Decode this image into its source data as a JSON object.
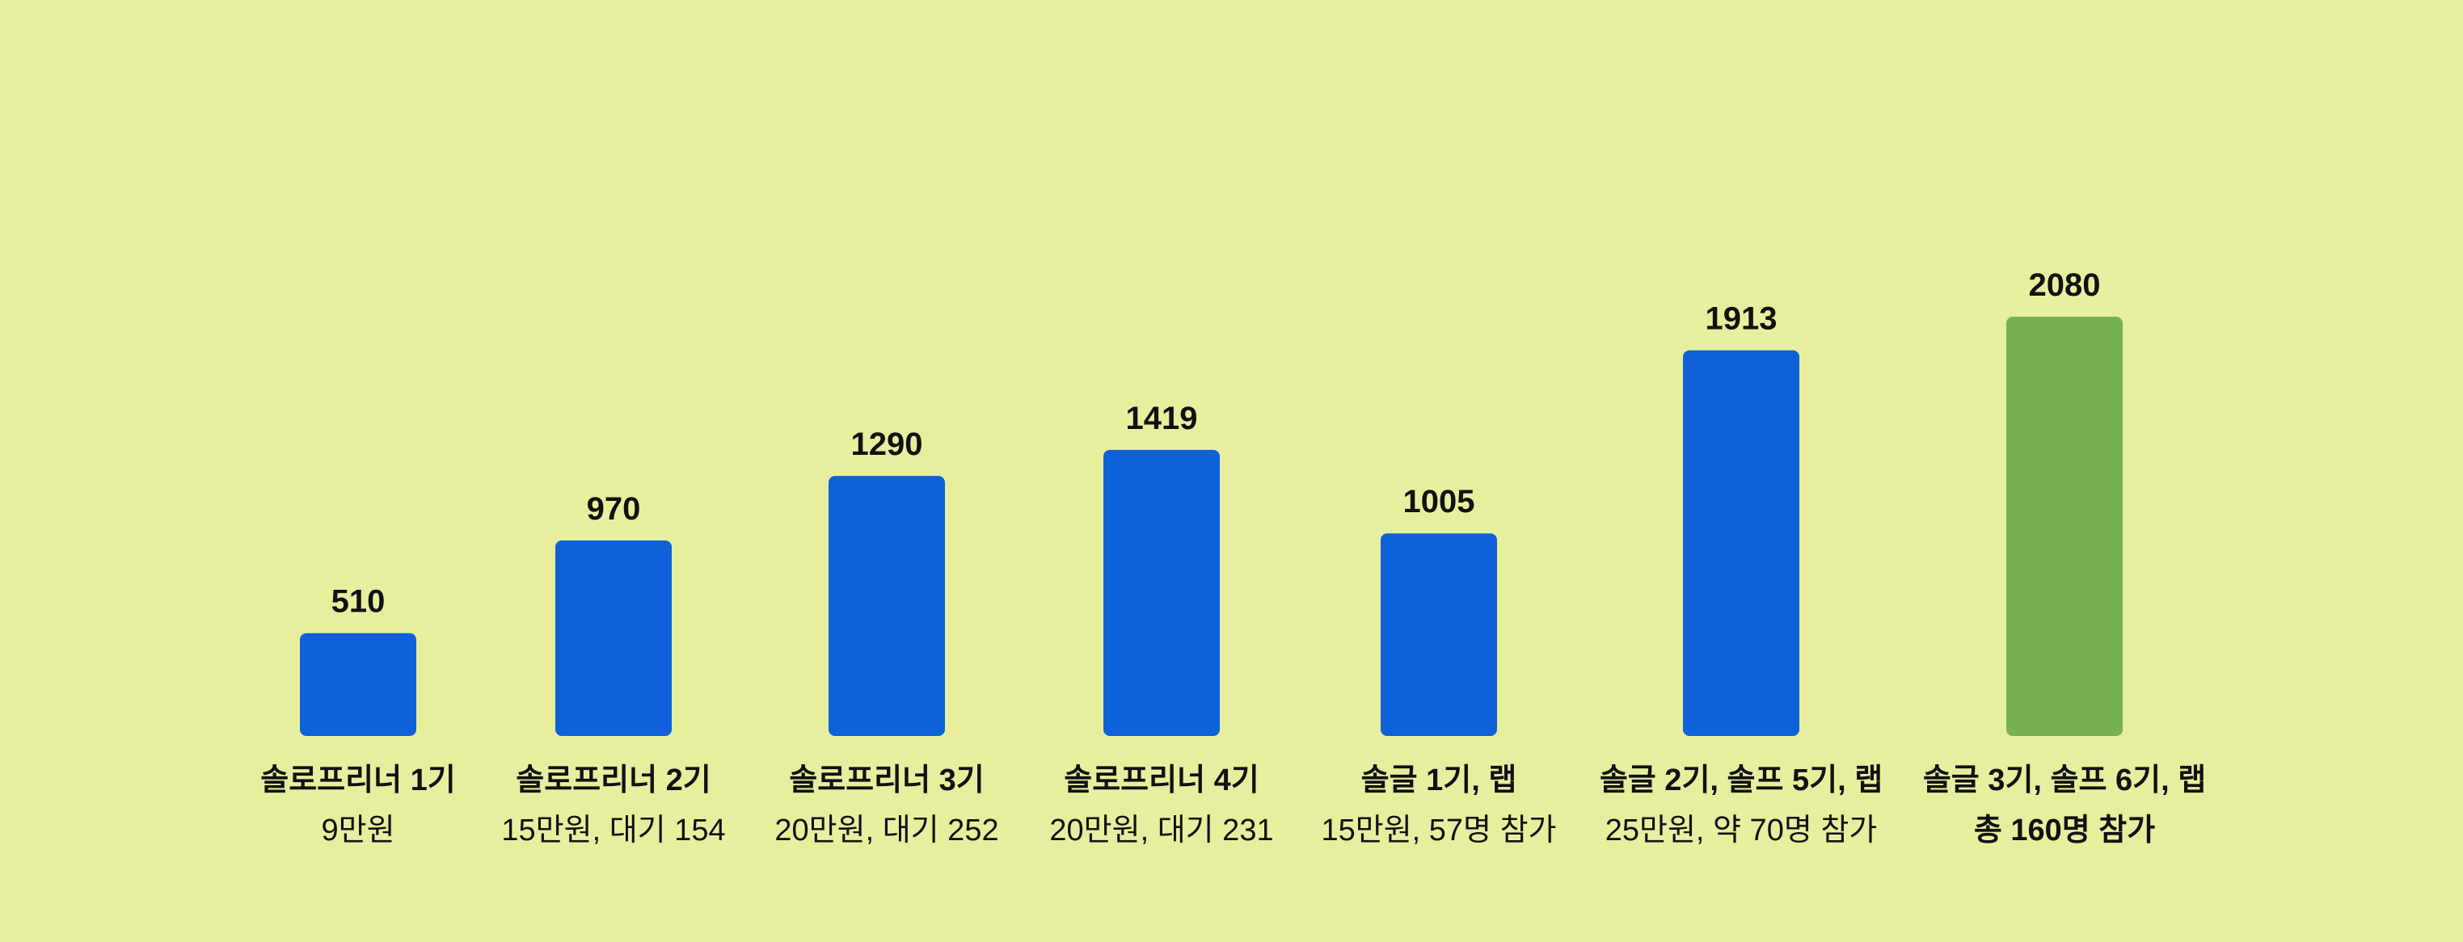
{
  "chart_data": {
    "type": "bar",
    "categories": [
      "솔로프리너 1기",
      "솔로프리너 2기",
      "솔로프리너 3기",
      "솔로프리너 4기",
      "솔글 1기, 랩",
      "솔글 2기, 솔프 5기, 랩",
      "솔글 3기, 솔프 6기, 랩"
    ],
    "subtitles": [
      "9만원",
      "15만원, 대기 154",
      "20만원, 대기 252",
      "20만원, 대기 231",
      "15만원, 57명 참가",
      "25만원, 약 70명 참가",
      "총 160명 참가"
    ],
    "values": [
      510,
      970,
      1290,
      1419,
      1005,
      1913,
      2080
    ],
    "value_labels": [
      "510",
      "970",
      "1290",
      "1419",
      "1005",
      "1913",
      "2080"
    ],
    "ylim": [
      0,
      2080
    ],
    "grid": false,
    "highlight_index": 6,
    "colors": {
      "background": "#e7ef9f",
      "bar": "#0f61d9",
      "highlight": "#76b150",
      "text": "#111111"
    }
  }
}
